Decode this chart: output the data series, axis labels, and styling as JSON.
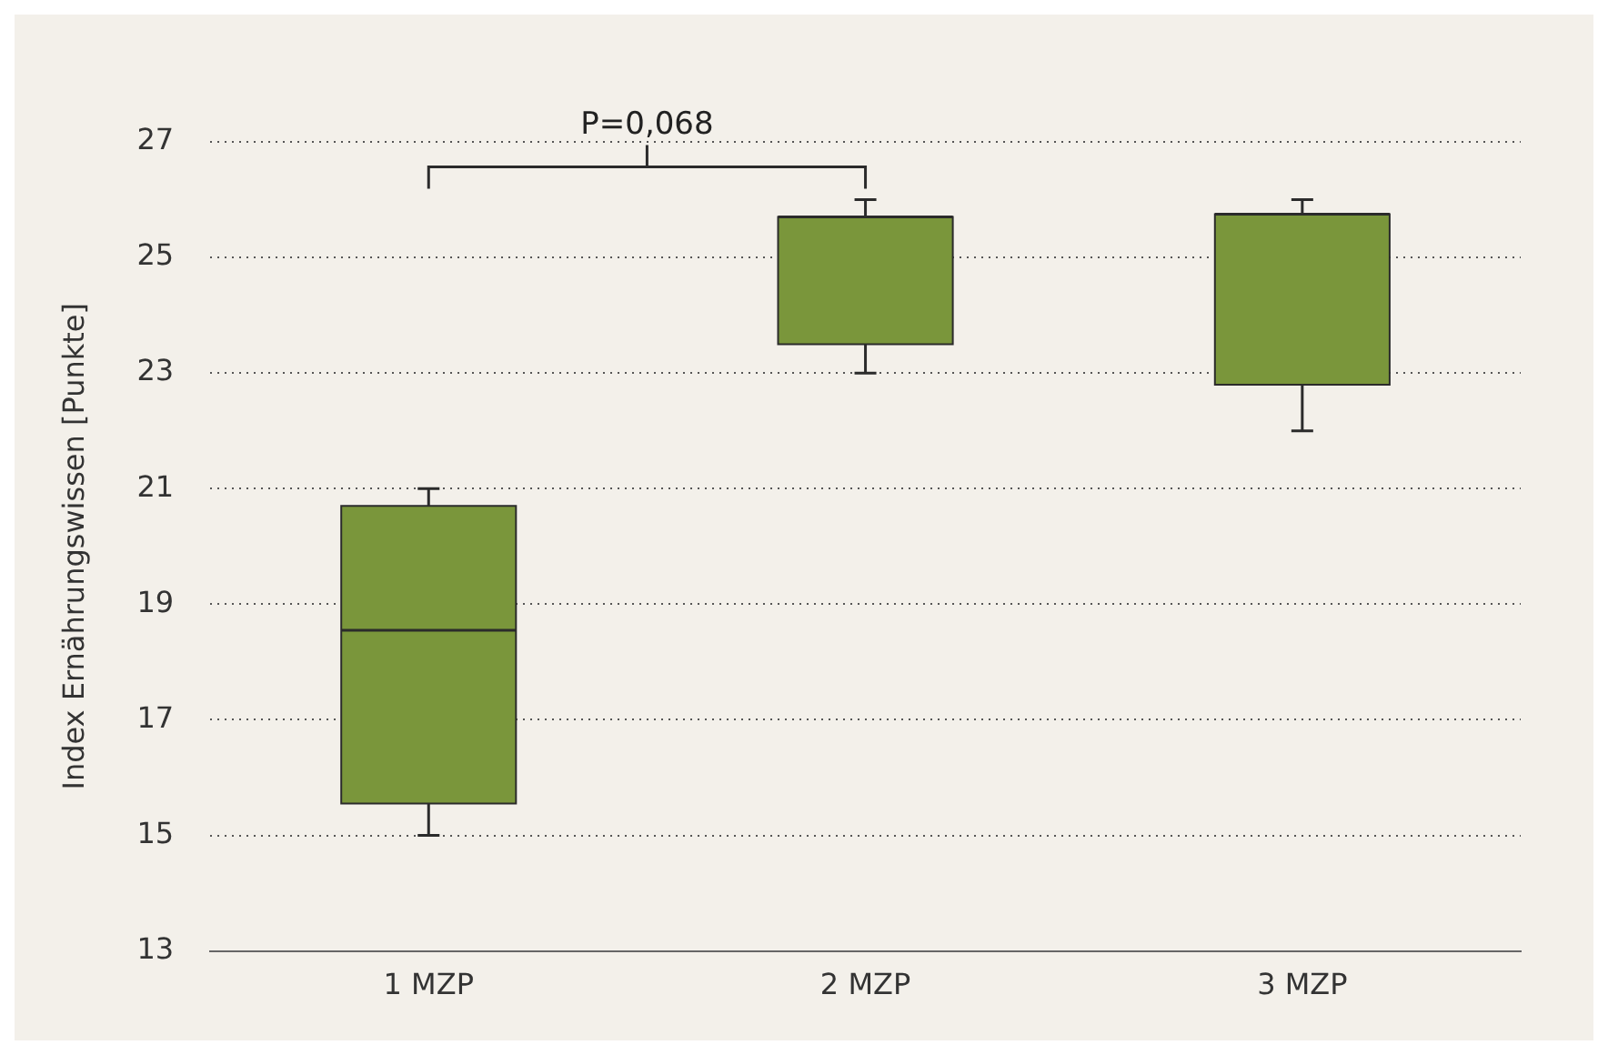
{
  "chart_data": {
    "type": "box",
    "ylabel": "Index Ernährungswissen [Punkte]",
    "categories": [
      "1 MZP",
      "2 MZP",
      "3 MZP"
    ],
    "color": "#7a963b",
    "boxes": [
      {
        "low": 15.0,
        "q1": 15.55,
        "median": 18.55,
        "q3": 20.7,
        "high": 21.0
      },
      {
        "low": 23.0,
        "q1": 23.5,
        "median": 25.7,
        "q3": 25.7,
        "high": 26.0
      },
      {
        "low": 22.0,
        "q1": 22.8,
        "median": 25.75,
        "q3": 25.75,
        "high": 26.0
      }
    ],
    "ylim": [
      13,
      27
    ],
    "yticks": [
      13,
      15,
      17,
      19,
      21,
      23,
      25,
      27
    ],
    "grid": "y",
    "legend": false,
    "annotations": [
      "P=0,068"
    ]
  }
}
